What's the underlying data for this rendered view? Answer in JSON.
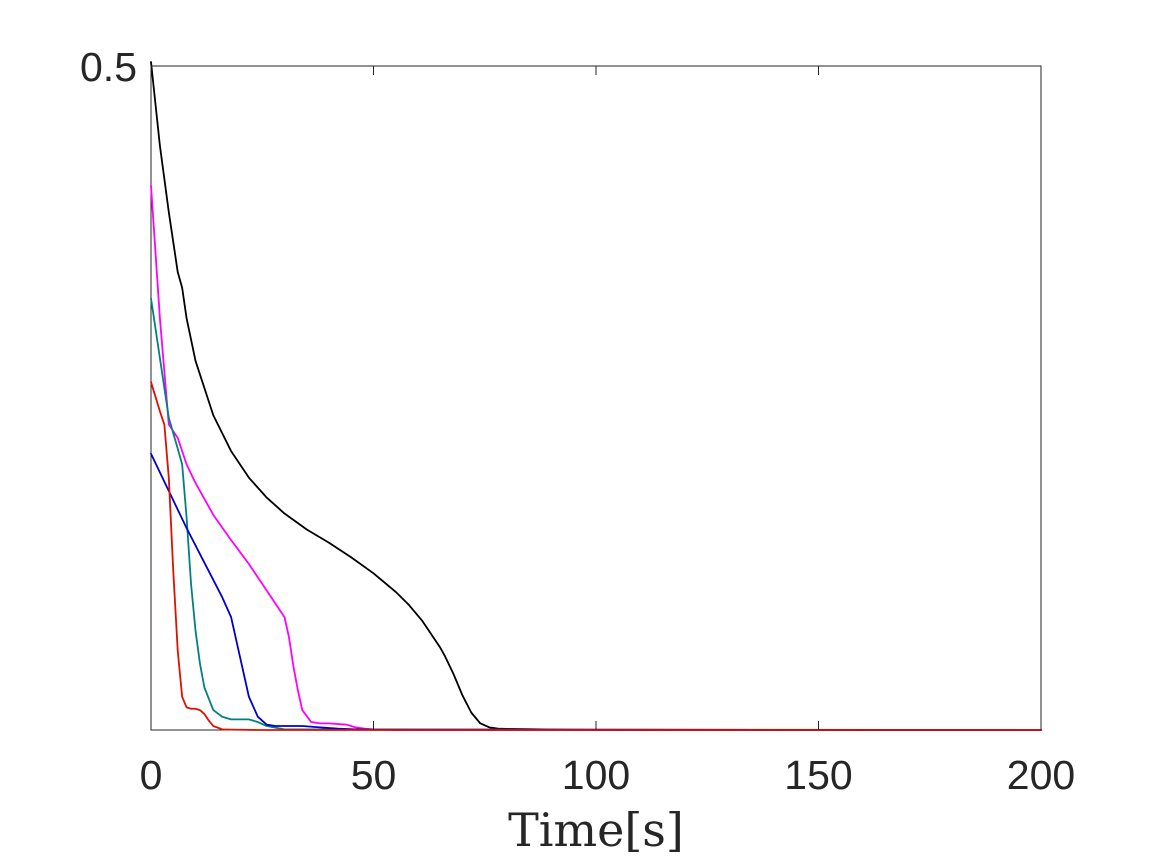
{
  "chart_data": {
    "type": "line",
    "title": "",
    "xlabel": "Time[s]",
    "ylabel": "",
    "xlim": [
      0,
      200
    ],
    "ylim": [
      0,
      0.5
    ],
    "x_ticks": [
      {
        "value": 0,
        "label": "0"
      },
      {
        "value": 50,
        "label": "50"
      },
      {
        "value": 100,
        "label": "100"
      },
      {
        "value": 150,
        "label": "150"
      },
      {
        "value": 200,
        "label": "200"
      }
    ],
    "y_ticks": [
      {
        "value": 0.5,
        "label": "0.5"
      }
    ],
    "grid": false,
    "legend": "none",
    "series": [
      {
        "color": "#000000",
        "x": [
          0,
          2,
          4,
          6,
          7,
          8,
          10,
          14,
          18,
          22,
          26,
          30,
          35,
          40,
          45,
          50,
          55,
          58,
          61,
          63,
          64,
          65,
          66,
          68,
          70,
          72,
          74,
          76,
          78,
          80,
          85,
          90,
          95,
          100,
          200
        ],
        "y": [
          0.503,
          0.44,
          0.39,
          0.345,
          0.333,
          0.31,
          0.278,
          0.237,
          0.21,
          0.19,
          0.175,
          0.163,
          0.151,
          0.141,
          0.13,
          0.118,
          0.104,
          0.094,
          0.082,
          0.072,
          0.067,
          0.062,
          0.056,
          0.042,
          0.026,
          0.013,
          0.005,
          0.002,
          0.001,
          0.0008,
          0.0006,
          0.0004,
          0.0002,
          0.0001,
          0.0
        ]
      },
      {
        "color": "#ff00ff",
        "x": [
          0,
          2,
          4,
          5,
          6,
          7,
          8,
          10,
          14,
          18,
          22,
          26,
          29,
          30,
          31,
          32,
          33,
          34,
          36,
          38,
          40,
          44,
          46,
          48,
          50,
          55,
          200
        ],
        "y": [
          0.41,
          0.31,
          0.23,
          0.225,
          0.22,
          0.21,
          0.2,
          0.186,
          0.162,
          0.143,
          0.125,
          0.105,
          0.09,
          0.085,
          0.07,
          0.048,
          0.03,
          0.015,
          0.006,
          0.005,
          0.005,
          0.004,
          0.002,
          0.001,
          0.0005,
          0.0,
          0.0
        ]
      },
      {
        "color": "#008080",
        "x": [
          0,
          2,
          4,
          6,
          7,
          8,
          9,
          10,
          11,
          12,
          14,
          16,
          18,
          20,
          22,
          24,
          26,
          30,
          200
        ],
        "y": [
          0.325,
          0.28,
          0.235,
          0.212,
          0.2,
          0.16,
          0.11,
          0.075,
          0.05,
          0.032,
          0.015,
          0.01,
          0.008,
          0.008,
          0.008,
          0.006,
          0.003,
          0.0005,
          0.0
        ]
      },
      {
        "color": "#0000cc",
        "x": [
          0,
          4,
          8,
          12,
          16,
          18,
          19,
          20,
          21,
          22,
          24,
          26,
          28,
          30,
          34,
          38,
          42,
          46,
          50,
          200
        ],
        "y": [
          0.208,
          0.18,
          0.152,
          0.126,
          0.1,
          0.085,
          0.07,
          0.055,
          0.04,
          0.025,
          0.01,
          0.004,
          0.003,
          0.003,
          0.003,
          0.002,
          0.001,
          0.0005,
          0.0002,
          0.0
        ]
      },
      {
        "color": "#dd1100",
        "x": [
          0,
          2,
          3,
          4,
          5,
          6,
          7,
          8,
          9,
          10,
          11,
          12,
          13,
          14,
          16,
          18,
          20,
          24,
          200
        ],
        "y": [
          0.262,
          0.24,
          0.23,
          0.19,
          0.12,
          0.06,
          0.025,
          0.017,
          0.016,
          0.016,
          0.015,
          0.012,
          0.007,
          0.003,
          0.0005,
          0.0003,
          0.0002,
          0.0,
          0.0
        ]
      }
    ]
  }
}
